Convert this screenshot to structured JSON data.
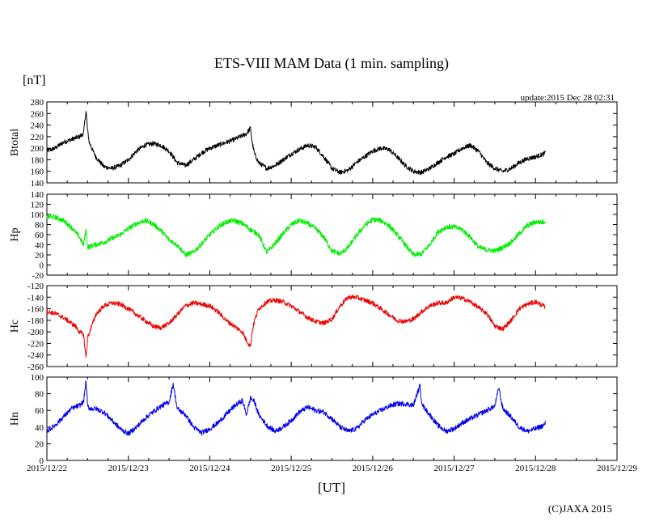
{
  "chart_data": {
    "type": "line",
    "title": "ETS-VIII MAM Data (1 min. sampling)",
    "unit_label": "[nT]",
    "update_text": "update:2015 Dec 28 02:31",
    "copyright": "(C)JAXA 2015",
    "xlabel": "[UT]",
    "grid": false,
    "x_ticks": [
      "2015/12/22",
      "2015/12/23",
      "2015/12/24",
      "2015/12/25",
      "2015/12/26",
      "2015/12/27",
      "2015/12/28",
      "2015/12/29"
    ],
    "x_range_days": [
      0,
      7
    ],
    "panels": [
      {
        "name": "Btotal",
        "color": "#000000",
        "ylim": [
          140,
          280
        ],
        "yticks": [
          140,
          160,
          180,
          200,
          220,
          240,
          260,
          280
        ],
        "noise": 4,
        "x_days": [
          0,
          0.1,
          0.2,
          0.3,
          0.4,
          0.45,
          0.48,
          0.5,
          0.52,
          0.55,
          0.6,
          0.7,
          0.8,
          0.9,
          1.0,
          1.1,
          1.2,
          1.3,
          1.4,
          1.5,
          1.6,
          1.7,
          1.8,
          1.9,
          2.0,
          2.1,
          2.2,
          2.3,
          2.45,
          2.5,
          2.52,
          2.55,
          2.6,
          2.7,
          2.8,
          2.9,
          3.0,
          3.1,
          3.2,
          3.3,
          3.4,
          3.5,
          3.6,
          3.7,
          3.8,
          3.9,
          4.0,
          4.1,
          4.2,
          4.3,
          4.4,
          4.5,
          4.6,
          4.7,
          4.8,
          4.9,
          5.0,
          5.1,
          5.2,
          5.3,
          5.4,
          5.5,
          5.6,
          5.7,
          5.8,
          5.9,
          6.0,
          6.1,
          6.12
        ],
        "values": [
          195,
          200,
          210,
          215,
          220,
          225,
          265,
          230,
          210,
          200,
          185,
          168,
          165,
          170,
          180,
          195,
          205,
          208,
          205,
          195,
          175,
          170,
          180,
          192,
          200,
          205,
          210,
          215,
          225,
          235,
          210,
          190,
          175,
          165,
          170,
          180,
          190,
          198,
          205,
          202,
          185,
          165,
          158,
          162,
          175,
          185,
          195,
          200,
          198,
          185,
          170,
          160,
          158,
          165,
          175,
          185,
          190,
          200,
          205,
          195,
          175,
          165,
          160,
          165,
          175,
          182,
          185,
          190,
          192
        ]
      },
      {
        "name": "Hp",
        "color": "#00ee00",
        "ylim": [
          -20,
          140
        ],
        "yticks": [
          -20,
          0,
          20,
          40,
          60,
          80,
          100,
          120,
          140
        ],
        "noise": 5,
        "x_days": [
          0,
          0.1,
          0.2,
          0.3,
          0.4,
          0.45,
          0.48,
          0.5,
          0.55,
          0.7,
          0.9,
          1.0,
          1.1,
          1.2,
          1.3,
          1.4,
          1.5,
          1.6,
          1.7,
          1.8,
          1.9,
          2.0,
          2.1,
          2.2,
          2.3,
          2.4,
          2.5,
          2.6,
          2.7,
          2.8,
          2.9,
          3.0,
          3.1,
          3.2,
          3.3,
          3.4,
          3.5,
          3.6,
          3.7,
          3.8,
          3.9,
          4.0,
          4.1,
          4.2,
          4.3,
          4.4,
          4.5,
          4.6,
          4.7,
          4.8,
          4.9,
          5.0,
          5.1,
          5.2,
          5.3,
          5.4,
          5.5,
          5.6,
          5.7,
          5.8,
          5.9,
          6.0,
          6.1,
          6.12
        ],
        "values": [
          95,
          95,
          88,
          75,
          55,
          40,
          70,
          35,
          38,
          45,
          60,
          72,
          82,
          88,
          82,
          68,
          50,
          40,
          20,
          25,
          42,
          60,
          75,
          85,
          88,
          82,
          70,
          60,
          25,
          42,
          62,
          80,
          88,
          82,
          72,
          55,
          28,
          22,
          35,
          58,
          78,
          90,
          88,
          78,
          60,
          40,
          20,
          22,
          40,
          65,
          75,
          75,
          70,
          55,
          35,
          30,
          28,
          35,
          45,
          62,
          78,
          85,
          85,
          87
        ]
      },
      {
        "name": "Hc",
        "color": "#ee0000",
        "ylim": [
          -260,
          -120
        ],
        "yticks": [
          -260,
          -240,
          -220,
          -200,
          -180,
          -160,
          -140,
          -120
        ],
        "noise": 4,
        "x_days": [
          0,
          0.1,
          0.2,
          0.3,
          0.35,
          0.4,
          0.45,
          0.48,
          0.5,
          0.55,
          0.6,
          0.7,
          0.8,
          0.9,
          1.0,
          1.1,
          1.2,
          1.3,
          1.4,
          1.5,
          1.6,
          1.7,
          1.8,
          1.9,
          2.0,
          2.1,
          2.2,
          2.3,
          2.4,
          2.45,
          2.5,
          2.52,
          2.55,
          2.6,
          2.7,
          2.8,
          2.9,
          3.0,
          3.1,
          3.2,
          3.3,
          3.4,
          3.5,
          3.6,
          3.7,
          3.8,
          3.9,
          4.0,
          4.1,
          4.2,
          4.3,
          4.4,
          4.5,
          4.6,
          4.7,
          4.8,
          4.9,
          5.0,
          5.1,
          5.2,
          5.3,
          5.4,
          5.5,
          5.6,
          5.7,
          5.8,
          5.9,
          6.0,
          6.1,
          6.12
        ],
        "values": [
          -165,
          -168,
          -175,
          -185,
          -190,
          -200,
          -205,
          -245,
          -210,
          -190,
          -170,
          -155,
          -150,
          -152,
          -160,
          -170,
          -180,
          -190,
          -193,
          -185,
          -170,
          -155,
          -150,
          -152,
          -155,
          -165,
          -180,
          -190,
          -200,
          -215,
          -225,
          -200,
          -180,
          -160,
          -148,
          -145,
          -148,
          -155,
          -165,
          -175,
          -182,
          -185,
          -178,
          -155,
          -140,
          -140,
          -145,
          -150,
          -160,
          -170,
          -180,
          -182,
          -178,
          -165,
          -155,
          -150,
          -150,
          -140,
          -142,
          -148,
          -158,
          -168,
          -190,
          -195,
          -180,
          -160,
          -152,
          -148,
          -155,
          -160
        ]
      },
      {
        "name": "Hn",
        "color": "#0000ee",
        "ylim": [
          0,
          100
        ],
        "yticks": [
          0,
          20,
          40,
          60,
          80,
          100
        ],
        "noise": 3,
        "x_days": [
          0,
          0.1,
          0.2,
          0.3,
          0.4,
          0.45,
          0.48,
          0.5,
          0.52,
          0.55,
          0.6,
          0.7,
          0.8,
          0.9,
          1.0,
          1.1,
          1.2,
          1.3,
          1.4,
          1.5,
          1.55,
          1.6,
          1.7,
          1.8,
          1.9,
          2.0,
          2.1,
          2.2,
          2.3,
          2.4,
          2.45,
          2.5,
          2.55,
          2.6,
          2.7,
          2.8,
          2.9,
          3.0,
          3.1,
          3.2,
          3.3,
          3.4,
          3.5,
          3.6,
          3.7,
          3.8,
          3.9,
          4.0,
          4.1,
          4.2,
          4.3,
          4.4,
          4.5,
          4.58,
          4.6,
          4.62,
          4.7,
          4.8,
          4.9,
          5.0,
          5.1,
          5.2,
          5.3,
          5.4,
          5.5,
          5.55,
          5.58,
          5.6,
          5.7,
          5.8,
          5.9,
          6.0,
          6.1,
          6.12
        ],
        "values": [
          35,
          42,
          52,
          62,
          66,
          70,
          95,
          65,
          63,
          62,
          62,
          58,
          48,
          38,
          32,
          40,
          50,
          58,
          65,
          70,
          92,
          62,
          55,
          40,
          33,
          38,
          45,
          55,
          65,
          72,
          55,
          75,
          70,
          55,
          42,
          35,
          40,
          48,
          58,
          64,
          60,
          58,
          50,
          40,
          35,
          38,
          48,
          55,
          60,
          65,
          68,
          68,
          66,
          90,
          72,
          65,
          55,
          42,
          35,
          38,
          45,
          50,
          55,
          60,
          65,
          88,
          70,
          62,
          52,
          40,
          35,
          38,
          42,
          45
        ]
      }
    ]
  }
}
